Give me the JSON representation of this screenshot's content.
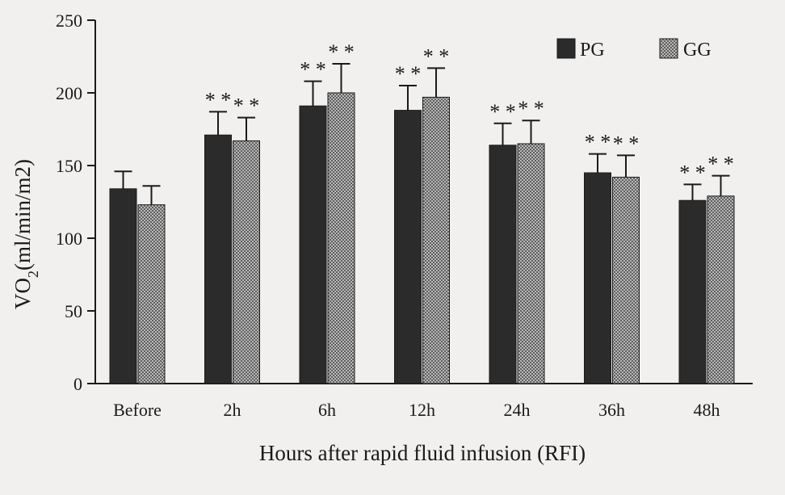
{
  "chart_data": {
    "type": "bar",
    "xlabel": "Hours after rapid fluid infusion (RFI)",
    "ylabel_main": "VO",
    "ylabel_sub": "2",
    "ylabel_rest": "(ml/min/m2)",
    "ylim": [
      0,
      250
    ],
    "yticks": [
      0,
      50,
      100,
      150,
      200,
      250
    ],
    "categories": [
      "Before",
      "2h",
      "6h",
      "12h",
      "24h",
      "36h",
      "48h"
    ],
    "legend_position": "top-right",
    "series": [
      {
        "name": "PG",
        "fill": "solid-dark",
        "color": "#2b2b2b",
        "values": [
          134,
          171,
          191,
          188,
          164,
          145,
          126
        ],
        "errors": [
          12,
          16,
          17,
          17,
          15,
          13,
          11
        ],
        "annotations": [
          "",
          "* *",
          "* *",
          "* *",
          "* *",
          "* *",
          "* *"
        ]
      },
      {
        "name": "GG",
        "fill": "checkered",
        "color": "#8a8a8a",
        "values": [
          123,
          167,
          200,
          197,
          165,
          142,
          129
        ],
        "errors": [
          13,
          16,
          20,
          20,
          16,
          15,
          14
        ],
        "annotations": [
          "",
          "* *",
          "* *",
          "* *",
          "* *",
          "* *",
          "* *"
        ]
      }
    ]
  }
}
